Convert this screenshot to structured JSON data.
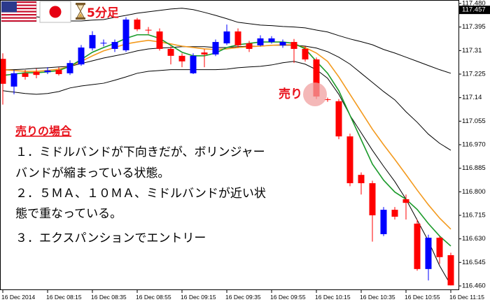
{
  "header": {
    "timeframe_label": "5分足"
  },
  "chart_data": {
    "type": "candlestick",
    "categories": [
      "16 Dec 2014",
      null,
      null,
      null,
      "16 Dec 08:15",
      null,
      null,
      null,
      "16 Dec 08:35",
      null,
      null,
      null,
      "16 Dec 08:55",
      null,
      null,
      null,
      "16 Dec 09:15",
      null,
      null,
      null,
      "16 Dec 09:35",
      null,
      null,
      null,
      "16 Dec 09:55",
      null,
      null,
      null,
      "16 Dec 10:15",
      null,
      null,
      null,
      "16 Dec 10:35",
      null,
      null,
      null,
      "16 Dec 10:55",
      null,
      null,
      null,
      "16 Dec 11:15"
    ],
    "open": [
      117.28,
      117.18,
      117.228,
      117.233,
      117.232,
      117.24,
      117.228,
      117.26,
      117.318,
      117.336,
      117.316,
      117.311,
      117.422,
      117.385,
      117.379,
      117.316,
      117.291,
      117.228,
      117.303,
      117.296,
      117.336,
      117.379,
      117.336,
      117.329,
      117.341,
      117.329,
      117.341,
      117.316,
      117.278,
      117.134,
      117.127,
      117.0,
      116.861,
      116.831,
      116.647,
      116.735,
      116.773,
      116.685,
      116.521,
      116.634,
      116.571
    ],
    "high": [
      117.3,
      117.24,
      117.24,
      117.245,
      117.25,
      117.25,
      117.275,
      117.33,
      117.38,
      117.35,
      117.35,
      117.43,
      117.428,
      117.395,
      117.39,
      117.325,
      117.3,
      117.3,
      117.315,
      117.35,
      117.404,
      117.39,
      117.345,
      117.365,
      117.362,
      117.35,
      117.352,
      117.325,
      117.285,
      117.14,
      117.135,
      117.01,
      116.87,
      116.84,
      116.745,
      116.745,
      116.79,
      116.7,
      116.645,
      116.64,
      116.58
    ],
    "low": [
      117.115,
      117.152,
      117.205,
      117.21,
      117.225,
      117.22,
      117.222,
      117.255,
      117.31,
      117.325,
      117.305,
      117.305,
      117.38,
      117.37,
      117.31,
      117.26,
      117.25,
      117.225,
      117.25,
      117.29,
      117.33,
      117.32,
      117.305,
      117.325,
      117.335,
      117.32,
      117.265,
      117.27,
      117.135,
      117.125,
      116.99,
      116.82,
      116.79,
      116.62,
      116.64,
      116.7,
      116.7,
      116.515,
      116.48,
      116.54,
      116.462
    ],
    "close": [
      117.19,
      117.228,
      117.215,
      117.222,
      117.238,
      117.225,
      117.265,
      117.321,
      117.366,
      117.338,
      117.341,
      117.422,
      117.387,
      117.383,
      117.316,
      117.291,
      117.271,
      117.291,
      117.296,
      117.341,
      117.379,
      117.329,
      117.316,
      117.354,
      117.354,
      117.341,
      117.316,
      117.278,
      117.144,
      117.132,
      117.0,
      116.831,
      116.831,
      116.715,
      116.735,
      116.71,
      116.76,
      116.521,
      116.634,
      116.564,
      116.462
    ],
    "up_color": "#0000ff",
    "down_color": "#ff0000",
    "lines": [
      {
        "color": "#000000",
        "values": [
          117.455,
          117.448,
          117.44,
          117.432,
          117.427,
          117.422,
          117.417,
          117.417,
          117.42,
          117.422,
          117.43,
          117.437,
          117.445,
          117.45,
          117.455,
          117.46,
          117.463,
          117.458,
          117.448,
          117.437,
          117.425,
          117.412,
          117.407,
          117.402,
          117.4,
          117.397,
          117.395,
          117.392,
          117.384,
          117.377,
          117.364,
          117.352,
          117.342,
          117.331,
          117.314,
          117.301,
          117.286,
          117.271,
          117.256,
          117.241,
          117.228
        ]
      },
      {
        "color": "#000000",
        "values": [
          117.241,
          117.241,
          117.243,
          117.246,
          117.248,
          117.251,
          117.253,
          117.263,
          117.273,
          117.283,
          117.291,
          117.299,
          117.309,
          117.316,
          117.319,
          117.321,
          117.324,
          117.324,
          117.324,
          117.321,
          117.321,
          117.324,
          117.326,
          117.326,
          117.329,
          117.329,
          117.329,
          117.326,
          117.319,
          117.306,
          117.286,
          117.261,
          117.228,
          117.195,
          117.162,
          117.132,
          117.089,
          117.051,
          117.008,
          116.975,
          116.95
        ]
      },
      {
        "color": "#000000",
        "values": [
          117.165,
          117.16,
          117.155,
          117.152,
          117.155,
          117.162,
          117.175,
          117.182,
          117.187,
          117.192,
          117.203,
          117.215,
          117.228,
          117.235,
          117.238,
          117.241,
          117.241,
          117.241,
          117.241,
          117.241,
          117.243,
          117.248,
          117.251,
          117.253,
          117.258,
          117.266,
          117.271,
          117.261,
          117.241,
          117.21,
          117.152,
          117.076,
          117.013,
          116.95,
          116.892,
          116.837,
          116.773,
          116.698,
          116.622,
          116.533,
          116.463
        ]
      },
      {
        "color": "#f39a1e",
        "values": [
          117.241,
          117.238,
          117.235,
          117.235,
          117.238,
          117.243,
          117.253,
          117.271,
          117.291,
          117.309,
          117.321,
          117.334,
          117.341,
          117.347,
          117.341,
          117.334,
          117.326,
          117.321,
          117.316,
          117.314,
          117.316,
          117.321,
          117.324,
          117.326,
          117.329,
          117.331,
          117.331,
          117.321,
          117.301,
          117.271,
          117.215,
          117.152,
          117.089,
          117.026,
          116.97,
          116.917,
          116.862,
          116.806,
          116.753,
          116.705,
          116.665
        ]
      },
      {
        "color": "#1a9a2a",
        "values": [
          117.22,
          117.225,
          117.23,
          117.23,
          117.233,
          117.238,
          117.253,
          117.278,
          117.304,
          117.321,
          117.336,
          117.354,
          117.367,
          117.367,
          117.354,
          117.329,
          117.304,
          117.291,
          117.291,
          117.301,
          117.321,
          117.331,
          117.336,
          117.341,
          117.341,
          117.341,
          117.336,
          117.316,
          117.271,
          117.228,
          117.165,
          117.076,
          116.988,
          116.9,
          116.842,
          116.799,
          116.773,
          116.736,
          116.685,
          116.64,
          116.604
        ]
      }
    ],
    "ylim": [
      116.46,
      117.48
    ],
    "yticks": [
      {
        "value": 117.48,
        "label": "117.480"
      },
      117.395,
      117.31,
      117.225,
      117.14,
      117.055,
      {
        "value": 116.97,
        "label": "116.970"
      },
      116.885,
      {
        "value": 116.8,
        "label": "116.800"
      },
      116.715,
      {
        "value": 116.63,
        "label": "116.630"
      },
      116.545,
      {
        "value": 116.46,
        "label": "116.460"
      }
    ],
    "current_price": 117.457,
    "annotations": {
      "signal": "売り",
      "heading": "売りの場合",
      "lines": [
        "１．ミドルバンドが下向きだが、ボリンジャー",
        "バンドが縮まっている状態。",
        "２．５ＭＡ、１０ＭＡ、ミドルバンドが近い状",
        "態で重なっている。",
        "３．エクスパンションでエントリー"
      ]
    }
  }
}
